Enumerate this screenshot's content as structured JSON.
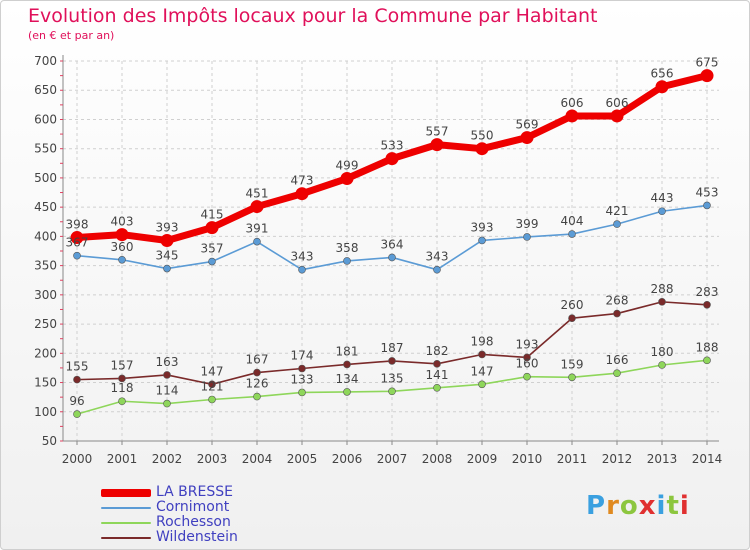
{
  "header": {
    "title": "Evolution des Impôts locaux pour la Commune par Habitant",
    "subtitle": "(en € et par an)"
  },
  "logo": {
    "letters": [
      "P",
      "r",
      "o",
      "x",
      "i",
      "t",
      "i"
    ],
    "colors": [
      "#3aa0e0",
      "#e08a20",
      "#8cc63e",
      "#e03030",
      "#3aa0e0",
      "#8cc63e",
      "#e03030"
    ]
  },
  "chart_data": {
    "type": "line",
    "title": "Evolution des Impôts locaux pour la Commune par Habitant",
    "subtitle": "(en € et par an)",
    "x": [
      "2000",
      "2001",
      "2002",
      "2003",
      "2004",
      "2005",
      "2006",
      "2007",
      "2008",
      "2009",
      "2010",
      "2011",
      "2012",
      "2013",
      "2014"
    ],
    "ylim": [
      50,
      700
    ],
    "yticks": [
      50,
      100,
      150,
      200,
      250,
      300,
      350,
      400,
      450,
      500,
      550,
      600,
      650,
      700
    ],
    "grid": true,
    "legend_position": "bottom-left",
    "series": [
      {
        "name": "LA BRESSE",
        "color": "#ee0000",
        "values": [
          398,
          403,
          393,
          415,
          451,
          473,
          499,
          533,
          557,
          550,
          569,
          606,
          606,
          656,
          675
        ]
      },
      {
        "name": "Cornimont",
        "color": "#5b9bd5",
        "values": [
          367,
          360,
          345,
          357,
          391,
          343,
          358,
          364,
          343,
          393,
          399,
          404,
          421,
          443,
          453
        ]
      },
      {
        "name": "Rochesson",
        "color": "#8ed65a",
        "values": [
          96,
          118,
          114,
          121,
          126,
          133,
          134,
          135,
          141,
          147,
          160,
          159,
          166,
          180,
          188
        ]
      },
      {
        "name": "Wildenstein",
        "color": "#7a2a2a",
        "values": [
          155,
          157,
          163,
          147,
          167,
          174,
          181,
          187,
          182,
          198,
          193,
          260,
          268,
          288,
          283
        ]
      }
    ]
  }
}
